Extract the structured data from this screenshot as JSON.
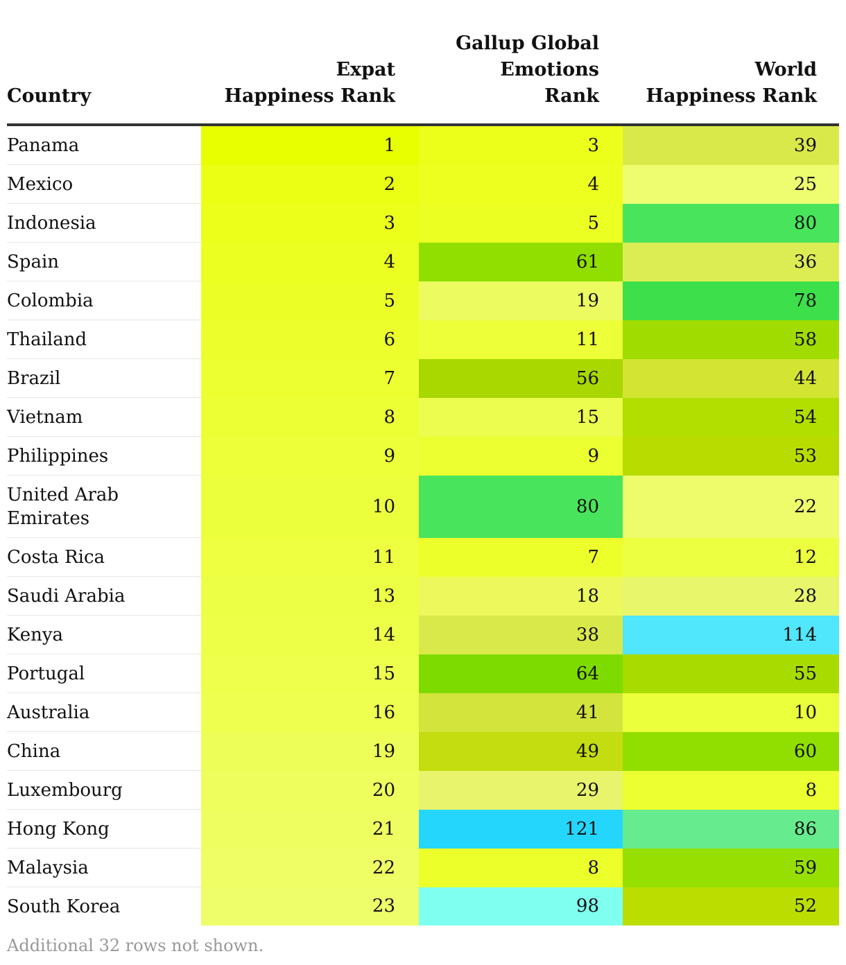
{
  "chart_data": {
    "type": "table",
    "columns": [
      "Country",
      "Expat Happiness Rank",
      "Gallup Global Emotions Rank",
      "World Happiness Rank"
    ],
    "header_lines": [
      [
        "Country"
      ],
      [
        "Expat",
        "Happiness Rank"
      ],
      [
        "Gallup Global",
        "Emotions",
        "Rank"
      ],
      [
        "World",
        "Happiness Rank"
      ]
    ],
    "rows": [
      {
        "country": "Panama",
        "expat": 1,
        "gallup": 3,
        "world": 39
      },
      {
        "country": "Mexico",
        "expat": 2,
        "gallup": 4,
        "world": 25
      },
      {
        "country": "Indonesia",
        "expat": 3,
        "gallup": 5,
        "world": 80
      },
      {
        "country": "Spain",
        "expat": 4,
        "gallup": 61,
        "world": 36
      },
      {
        "country": "Colombia",
        "expat": 5,
        "gallup": 19,
        "world": 78
      },
      {
        "country": "Thailand",
        "expat": 6,
        "gallup": 11,
        "world": 58
      },
      {
        "country": "Brazil",
        "expat": 7,
        "gallup": 56,
        "world": 44
      },
      {
        "country": "Vietnam",
        "expat": 8,
        "gallup": 15,
        "world": 54
      },
      {
        "country": "Philippines",
        "expat": 9,
        "gallup": 9,
        "world": 53
      },
      {
        "country": "United Arab Emirates",
        "expat": 10,
        "gallup": 80,
        "world": 22
      },
      {
        "country": "Costa Rica",
        "expat": 11,
        "gallup": 7,
        "world": 12
      },
      {
        "country": "Saudi Arabia",
        "expat": 13,
        "gallup": 18,
        "world": 28
      },
      {
        "country": "Kenya",
        "expat": 14,
        "gallup": 38,
        "world": 114
      },
      {
        "country": "Portugal",
        "expat": 15,
        "gallup": 64,
        "world": 55
      },
      {
        "country": "Australia",
        "expat": 16,
        "gallup": 41,
        "world": 10
      },
      {
        "country": "China",
        "expat": 19,
        "gallup": 49,
        "world": 60
      },
      {
        "country": "Luxembourg",
        "expat": 20,
        "gallup": 29,
        "world": 8
      },
      {
        "country": "Hong Kong",
        "expat": 21,
        "gallup": 121,
        "world": 86
      },
      {
        "country": "Malaysia",
        "expat": 22,
        "gallup": 8,
        "world": 59
      },
      {
        "country": "South Korea",
        "expat": 23,
        "gallup": 98,
        "world": 52
      }
    ],
    "cell_colors": {
      "expat": [
        "#e8ff00",
        "#ebff14",
        "#ebff1a",
        "#ebff20",
        "#ebff26",
        "#ecff2c",
        "#ecff30",
        "#ecff34",
        "#ecff38",
        "#ecff3c",
        "#edff40",
        "#edff44",
        "#eeff48",
        "#eeff4c",
        "#eeff50",
        "#eefe58",
        "#eefe5c",
        "#eefe60",
        "#eefe64",
        "#eefd6a"
      ],
      "gallup": [
        "#ecff1a",
        "#ecff1e",
        "#ecff22",
        "#90df00",
        "#ecfc60",
        "#ecff38",
        "#a8d800",
        "#ecfd50",
        "#ecff30",
        "#48e45c",
        "#ecff2a",
        "#ecf85c",
        "#dae94a",
        "#7edb00",
        "#d3e43c",
        "#c3dd10",
        "#e8f46c",
        "#25d6fc",
        "#ecff2a",
        "#7ffff0"
      ],
      "world": [
        "#dae94a",
        "#eefc70",
        "#48e45c",
        "#dced54",
        "#3de04a",
        "#a0dc00",
        "#d3e433",
        "#b2de00",
        "#b9dc00",
        "#eefc6c",
        "#ecff40",
        "#e8f66c",
        "#50e6fc",
        "#a8dc00",
        "#ecff3c",
        "#90df00",
        "#ecff30",
        "#66ec8e",
        "#96df00",
        "#bbdd00"
      ]
    },
    "footnote": "Additional 32 rows not shown."
  }
}
